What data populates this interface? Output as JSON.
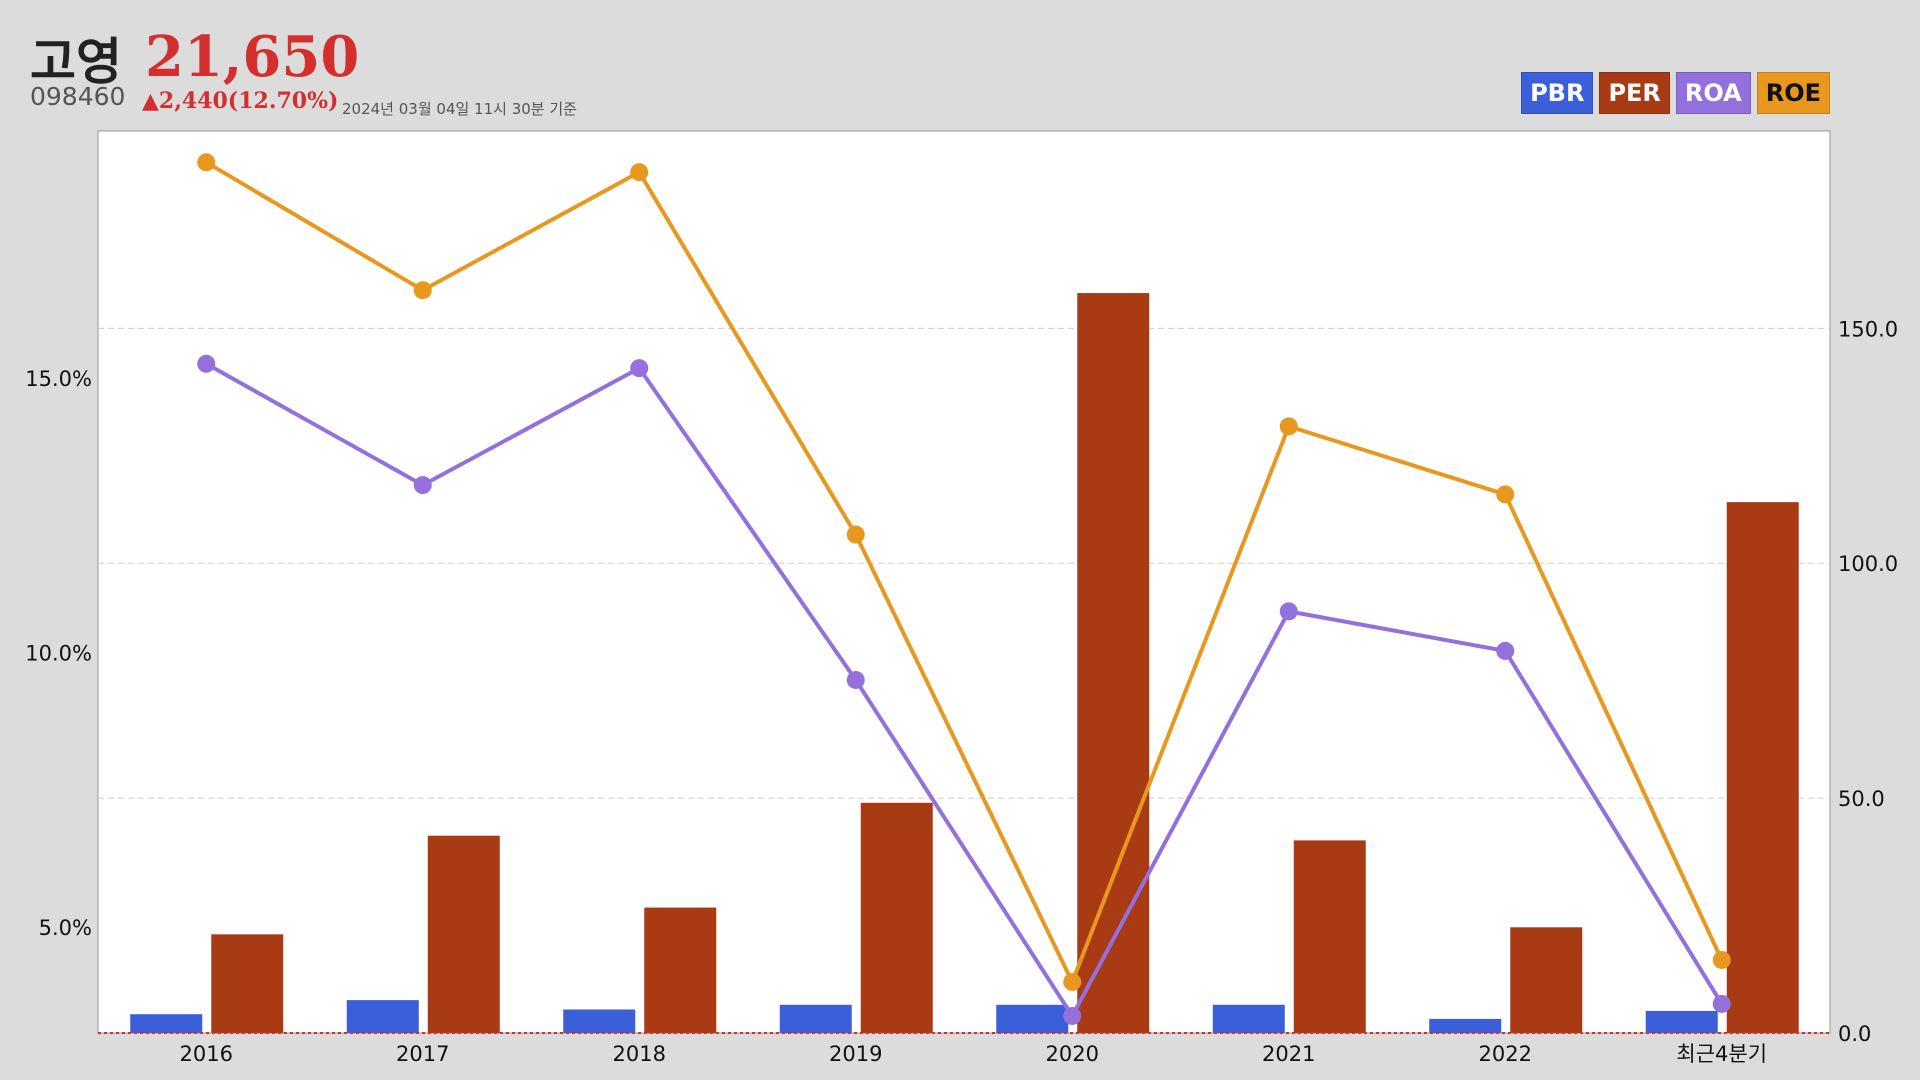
{
  "header": {
    "name": "고영",
    "price": "21,650",
    "code": "098460",
    "change": "▲2,440(12.70%)",
    "as_of": "2024년 03월 04일 11시 30분 기준"
  },
  "legend": [
    {
      "label": "PBR",
      "bg": "#3a5fd9",
      "fg": "#ffffff"
    },
    {
      "label": "PER",
      "bg": "#a83a14",
      "fg": "#ffffff"
    },
    {
      "label": "ROA",
      "bg": "#9370db",
      "fg": "#ffffff"
    },
    {
      "label": "ROE",
      "bg": "#e8981e",
      "fg": "#111111"
    }
  ],
  "chart_data": {
    "type": "bar",
    "categories": [
      "2016",
      "2017",
      "2018",
      "2019",
      "2020",
      "2021",
      "2022",
      "최근4분기"
    ],
    "left_axis": {
      "ticks": [
        "5.0%",
        "10.0%",
        "15.0%"
      ],
      "tick_values": [
        5,
        10,
        15
      ],
      "range": [
        3.07,
        19.5
      ]
    },
    "right_axis": {
      "ticks": [
        "0.0",
        "50.0",
        "100.0",
        "150.0"
      ],
      "tick_values": [
        0,
        50,
        100,
        150
      ],
      "range": [
        0,
        192
      ]
    },
    "series": [
      {
        "name": "PBR",
        "type": "bar",
        "axis": "right",
        "color": "#3a5fd9",
        "values": [
          4.0,
          7.0,
          5.0,
          6.0,
          6.0,
          6.0,
          3.0,
          4.7
        ]
      },
      {
        "name": "PER",
        "type": "bar",
        "axis": "right",
        "color": "#a83a14",
        "values": [
          21.0,
          42.0,
          26.7,
          49.0,
          157.5,
          41.0,
          22.5,
          113.0
        ]
      },
      {
        "name": "ROA",
        "type": "line",
        "axis": "left",
        "color": "#9370db",
        "values": [
          15.26,
          13.05,
          15.18,
          9.5,
          3.38,
          10.75,
          10.03,
          3.6
        ]
      },
      {
        "name": "ROE",
        "type": "line",
        "axis": "left",
        "color": "#e8981e",
        "values": [
          18.93,
          16.6,
          18.75,
          12.15,
          4.0,
          14.12,
          12.88,
          4.4
        ]
      }
    ],
    "grid": true
  }
}
